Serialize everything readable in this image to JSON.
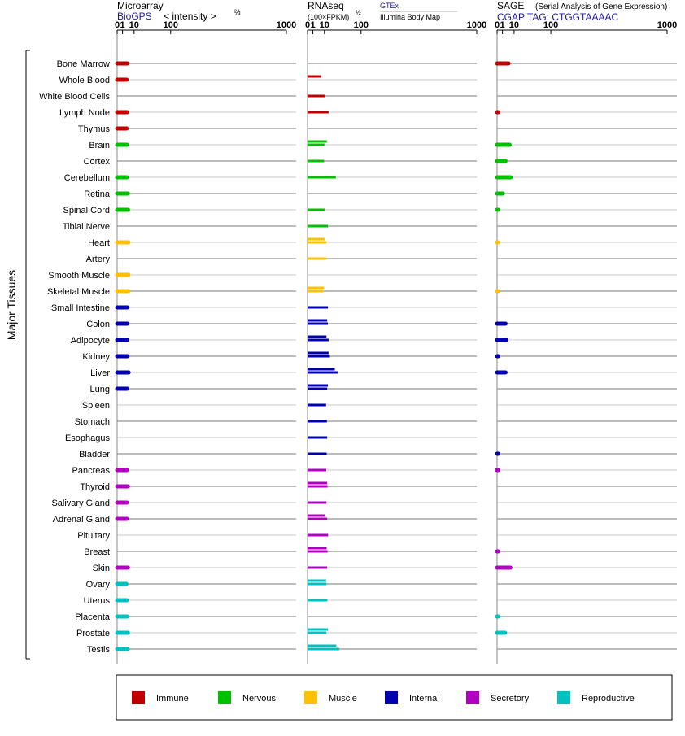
{
  "chart_data": {
    "type": "bar",
    "y_axis_title": "Major Tissues",
    "scale": {
      "ticks": [
        "0",
        "1",
        "10",
        "100",
        "1000"
      ],
      "tick_values": [
        0,
        1,
        10,
        100,
        1000
      ],
      "exponent": 0.5,
      "max": 1000
    },
    "panels": [
      {
        "key": "microarray",
        "title": "Microarray",
        "subtitle": "BioGPS",
        "note": "< intensity >",
        "note_sup": "⅔",
        "bar_thickness": "thick",
        "values": [
          [
            3.8
          ],
          [
            3.2
          ],
          [
            null
          ],
          [
            3.6
          ],
          [
            3.2
          ],
          [
            3.4
          ],
          [
            null
          ],
          [
            3.4
          ],
          [
            4.1
          ],
          [
            4.2
          ],
          [
            null
          ],
          [
            4.4
          ],
          [
            null
          ],
          [
            4.4
          ],
          [
            4.4
          ],
          [
            3.8
          ],
          [
            3.8
          ],
          [
            3.7
          ],
          [
            3.8
          ],
          [
            4.6
          ],
          [
            3.6
          ],
          [
            null
          ],
          [
            null
          ],
          [
            null
          ],
          [
            null
          ],
          [
            3.4
          ],
          [
            4.1
          ],
          [
            3.4
          ],
          [
            3.4
          ],
          [
            null
          ],
          [
            null
          ],
          [
            4.1
          ],
          [
            3.0
          ],
          [
            3.3
          ],
          [
            3.6
          ],
          [
            4.1
          ],
          [
            3.9
          ]
        ]
      },
      {
        "key": "rnaseq",
        "title": "RNAseq",
        "note": "(100×FPKM)",
        "note_sup": "½",
        "legend_1": "GTEx",
        "legend_2": "Illumina Body Map",
        "bar_thickness": "thin",
        "values": [
          [
            null,
            null
          ],
          [
            6.5,
            null
          ],
          [
            null,
            10.5
          ],
          [
            null,
            15.5
          ],
          [
            null,
            null
          ],
          [
            13,
            10
          ],
          [
            null,
            9.5
          ],
          [
            null,
            28
          ],
          [
            null,
            null
          ],
          [
            null,
            10.2
          ],
          [
            null,
            14.5
          ],
          [
            10.2,
            12.5
          ],
          [
            null,
            12.5
          ],
          [
            null,
            null
          ],
          [
            9.5,
            8.5
          ],
          [
            null,
            14.5
          ],
          [
            13.5,
            14.5
          ],
          [
            12.5,
            15.5
          ],
          [
            15.5,
            17.5
          ],
          [
            26,
            31.5
          ],
          [
            14.5,
            13.5
          ],
          [
            null,
            12
          ],
          [
            null,
            13
          ],
          [
            null,
            13.5
          ],
          [
            null,
            12.8
          ],
          [
            null,
            12.2
          ],
          [
            13.5,
            14
          ],
          [
            null,
            12.5
          ],
          [
            10.5,
            13.5
          ],
          [
            null,
            14.8
          ],
          [
            12.8,
            14
          ],
          [
            null,
            13.5
          ],
          [
            12,
            12.5
          ],
          [
            null,
            13.8
          ],
          [
            null,
            null
          ],
          [
            14.5,
            12.5
          ],
          [
            29,
            35
          ]
        ]
      },
      {
        "key": "sage",
        "title": "SAGE",
        "note": "(Serial Analysis of Gene Expression)",
        "subtitle": "CGAP TAG: CTGGTAAAAC",
        "bar_thickness": "thick",
        "values": [
          [
            4.5
          ],
          [
            null
          ],
          [
            null
          ],
          [
            0.05
          ],
          [
            null
          ],
          [
            5.5
          ],
          [
            2.5
          ],
          [
            6.5
          ],
          [
            1.2
          ],
          [
            0.05
          ],
          [
            null
          ],
          [
            0.02
          ],
          [
            null
          ],
          [
            null
          ],
          [
            0.02
          ],
          [
            null
          ],
          [
            2.5
          ],
          [
            3
          ],
          [
            0.05
          ],
          [
            2.5
          ],
          [
            null
          ],
          [
            null
          ],
          [
            null
          ],
          [
            null
          ],
          [
            0.05
          ],
          [
            0.05
          ],
          [
            null
          ],
          [
            null
          ],
          [
            null
          ],
          [
            null
          ],
          [
            0.05
          ],
          [
            6.2
          ],
          [
            null
          ],
          [
            null
          ],
          [
            0.05
          ],
          [
            2.2
          ],
          [
            null
          ]
        ]
      }
    ],
    "groups": [
      {
        "name": "Immune",
        "color": "#c00000"
      },
      {
        "name": "Nervous",
        "color": "#00c000"
      },
      {
        "name": "Muscle",
        "color": "#ffc000"
      },
      {
        "name": "Internal",
        "color": "#0000b0"
      },
      {
        "name": "Secretory",
        "color": "#b000c0"
      },
      {
        "name": "Reproductive",
        "color": "#00c0c0"
      }
    ],
    "tissues": [
      {
        "name": "Bone Marrow",
        "group": 0
      },
      {
        "name": "Whole Blood",
        "group": 0
      },
      {
        "name": "White Blood Cells",
        "group": 0
      },
      {
        "name": "Lymph Node",
        "group": 0
      },
      {
        "name": "Thymus",
        "group": 0
      },
      {
        "name": "Brain",
        "group": 1
      },
      {
        "name": "Cortex",
        "group": 1
      },
      {
        "name": "Cerebellum",
        "group": 1
      },
      {
        "name": "Retina",
        "group": 1
      },
      {
        "name": "Spinal Cord",
        "group": 1
      },
      {
        "name": "Tibial Nerve",
        "group": 1
      },
      {
        "name": "Heart",
        "group": 2
      },
      {
        "name": "Artery",
        "group": 2
      },
      {
        "name": "Smooth Muscle",
        "group": 2
      },
      {
        "name": "Skeletal Muscle",
        "group": 2
      },
      {
        "name": "Small Intestine",
        "group": 3
      },
      {
        "name": "Colon",
        "group": 3
      },
      {
        "name": "Adipocyte",
        "group": 3
      },
      {
        "name": "Kidney",
        "group": 3
      },
      {
        "name": "Liver",
        "group": 3
      },
      {
        "name": "Lung",
        "group": 3
      },
      {
        "name": "Spleen",
        "group": 3
      },
      {
        "name": "Stomach",
        "group": 3
      },
      {
        "name": "Esophagus",
        "group": 3
      },
      {
        "name": "Bladder",
        "group": 3
      },
      {
        "name": "Pancreas",
        "group": 4
      },
      {
        "name": "Thyroid",
        "group": 4
      },
      {
        "name": "Salivary Gland",
        "group": 4
      },
      {
        "name": "Adrenal Gland",
        "group": 4
      },
      {
        "name": "Pituitary",
        "group": 4
      },
      {
        "name": "Breast",
        "group": 4
      },
      {
        "name": "Skin",
        "group": 4
      },
      {
        "name": "Ovary",
        "group": 5
      },
      {
        "name": "Uterus",
        "group": 5
      },
      {
        "name": "Placenta",
        "group": 5
      },
      {
        "name": "Prostate",
        "group": 5
      },
      {
        "name": "Testis",
        "group": 5
      }
    ]
  }
}
